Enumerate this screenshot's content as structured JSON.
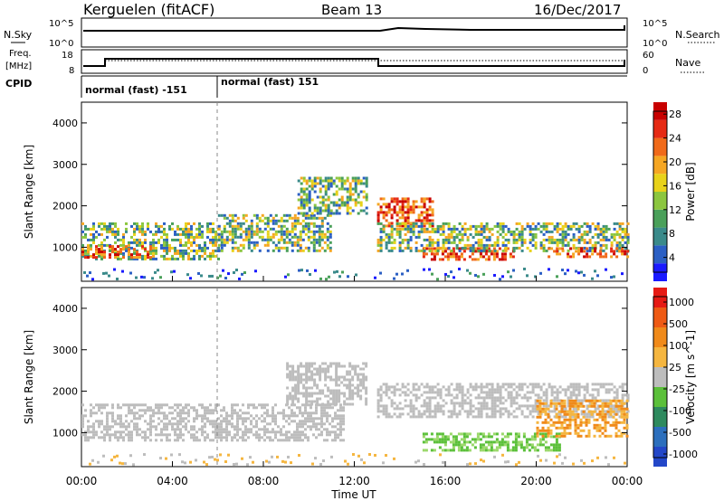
{
  "header": {
    "site": "Kerguelen (fitACF)",
    "beam": "Beam 13",
    "date": "16/Dec/2017"
  },
  "top_panels": {
    "nsky": {
      "label": "N.Sky",
      "left_ticks": [
        "10^5",
        "10^0"
      ],
      "right_ticks": [
        "10^5",
        "10^0"
      ],
      "right_label": "N.Search"
    },
    "freq": {
      "label_line1": "Freq.",
      "label_line2": "[MHz]",
      "left_ticks": [
        "18",
        "8"
      ],
      "right_ticks": [
        "60",
        "0"
      ],
      "right_label": "Nave"
    },
    "cpid": {
      "label": "CPID",
      "segments": [
        "normal (fast) -151",
        "normal (fast) 151"
      ]
    }
  },
  "chart_data": [
    {
      "type": "heatmap",
      "title": "",
      "xlabel": "",
      "ylabel": "Slant Range [km]",
      "x_ticks": [
        "00:00",
        "04:00",
        "08:00",
        "12:00",
        "16:00",
        "20:00",
        "00:00"
      ],
      "y_ticks": [
        "1000",
        "2000",
        "3000",
        "4000"
      ],
      "xlim_hours": [
        0,
        24
      ],
      "ylim_km": [
        180,
        4500
      ],
      "colorbar": {
        "label": "Power [dB]",
        "ticks": [
          "4",
          "8",
          "12",
          "16",
          "20",
          "24",
          "28"
        ],
        "range": [
          0,
          30
        ]
      },
      "regions": [
        {
          "t0": 0.0,
          "t1": 6.0,
          "r0": 700,
          "r1": 1600,
          "level": "mid"
        },
        {
          "t0": 0.0,
          "t1": 3.0,
          "r0": 750,
          "r1": 1050,
          "level": "high"
        },
        {
          "t0": 6.0,
          "t1": 11.0,
          "r0": 900,
          "r1": 1800,
          "level": "mid"
        },
        {
          "t0": 9.5,
          "t1": 12.5,
          "r0": 1800,
          "r1": 2700,
          "level": "mid"
        },
        {
          "t0": 13.0,
          "t1": 15.5,
          "r0": 1500,
          "r1": 2200,
          "level": "high"
        },
        {
          "t0": 15.0,
          "t1": 19.0,
          "r0": 700,
          "r1": 1000,
          "level": "high"
        },
        {
          "t0": 13.0,
          "t1": 24.0,
          "r0": 900,
          "r1": 1600,
          "level": "mid"
        },
        {
          "t0": 20.5,
          "t1": 24.0,
          "r0": 750,
          "r1": 1000,
          "level": "high"
        }
      ]
    },
    {
      "type": "heatmap",
      "title": "",
      "xlabel": "Time UT",
      "ylabel": "Slant Range [km]",
      "x_ticks": [
        "00:00",
        "04:00",
        "08:00",
        "12:00",
        "16:00",
        "20:00",
        "00:00"
      ],
      "y_ticks": [
        "1000",
        "2000",
        "3000",
        "4000"
      ],
      "xlim_hours": [
        0,
        24
      ],
      "ylim_km": [
        180,
        4500
      ],
      "colorbar": {
        "label": "Velocity [m s^-1]",
        "ticks": [
          "1000",
          "500",
          "100",
          "25",
          "-25",
          "-100",
          "-500",
          "-1000"
        ]
      },
      "regions": [
        {
          "t0": 0.0,
          "t1": 11.5,
          "r0": 800,
          "r1": 1700,
          "level": "ground"
        },
        {
          "t0": 9.0,
          "t1": 12.5,
          "r0": 1700,
          "r1": 2700,
          "level": "ground"
        },
        {
          "t0": 13.0,
          "t1": 24.0,
          "r0": 1400,
          "r1": 2200,
          "level": "ground"
        },
        {
          "t0": 15.0,
          "t1": 21.0,
          "r0": 600,
          "r1": 1000,
          "level": "green"
        },
        {
          "t0": 20.0,
          "t1": 24.0,
          "r0": 900,
          "r1": 1800,
          "level": "orange"
        }
      ]
    }
  ],
  "colors": {
    "power_scale": [
      "#1a1aff",
      "#2b5fc4",
      "#3a8a8a",
      "#4aa05a",
      "#8cc63f",
      "#e8d21a",
      "#f5a623",
      "#f06a1a",
      "#e62a14",
      "#c80000"
    ],
    "velocity_scale": [
      "#2347c8",
      "#2c6fbd",
      "#2e8a5e",
      "#5bc03a",
      "#bdbdbd",
      "#f5b640",
      "#f08a1a",
      "#ee5a14",
      "#e61a14"
    ],
    "ground_scatter": "#bdbdbd"
  }
}
